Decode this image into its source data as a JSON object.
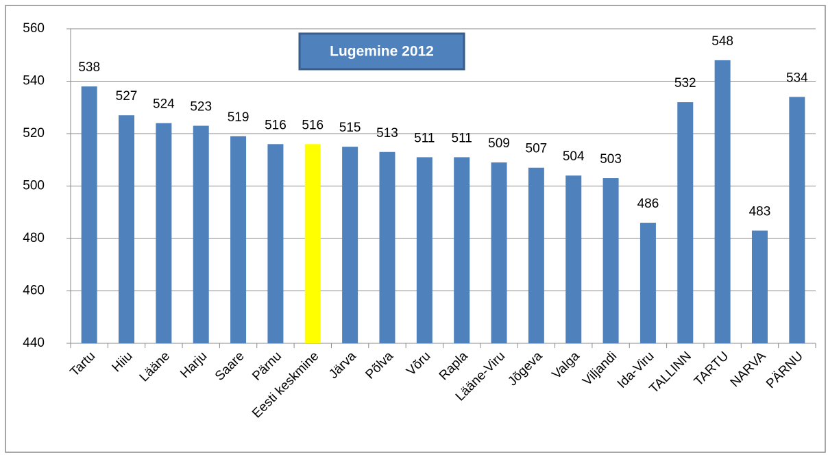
{
  "chart_data": {
    "type": "bar",
    "title": "Lugemine 2012",
    "categories": [
      "Tartu",
      "Hiiu",
      "Lääne",
      "Harju",
      "Saare",
      "Pärnu",
      "Eesti keskmine",
      "Järva",
      "Põlva",
      "Võru",
      "Rapla",
      "Lääne-Viru",
      "Jõgeva",
      "Valga",
      "Viljandi",
      "Ida-Viru",
      "TALLINN",
      "TARTU",
      "NARVA",
      "PÄRNU"
    ],
    "values": [
      538,
      527,
      524,
      523,
      519,
      516,
      516,
      515,
      513,
      511,
      511,
      509,
      507,
      504,
      503,
      486,
      532,
      548,
      483,
      534
    ],
    "colors": [
      "#4f81bd",
      "#4f81bd",
      "#4f81bd",
      "#4f81bd",
      "#4f81bd",
      "#4f81bd",
      "#ffff00",
      "#4f81bd",
      "#4f81bd",
      "#4f81bd",
      "#4f81bd",
      "#4f81bd",
      "#4f81bd",
      "#4f81bd",
      "#4f81bd",
      "#4f81bd",
      "#4f81bd",
      "#4f81bd",
      "#4f81bd",
      "#4f81bd"
    ],
    "ylim": [
      440,
      560
    ],
    "yticks": [
      440,
      460,
      480,
      500,
      520,
      540,
      560
    ],
    "grid": true
  }
}
